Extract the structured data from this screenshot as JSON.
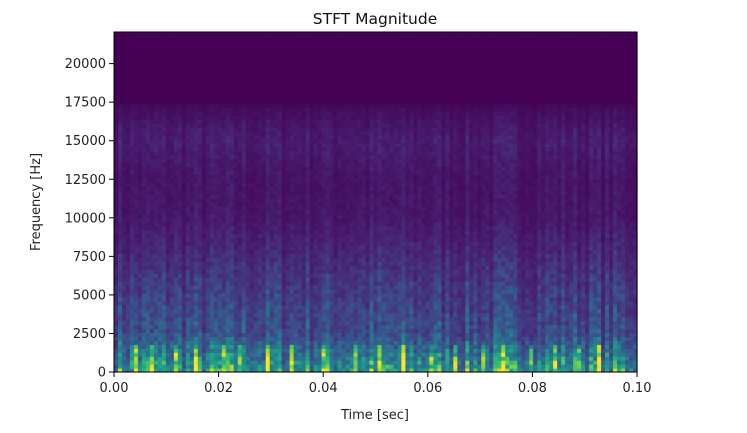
{
  "chart_data": {
    "type": "heatmap",
    "title": "STFT Magnitude",
    "xlabel": "Time [sec]",
    "ylabel": "Frequency [Hz]",
    "xlim": [
      0,
      0.1
    ],
    "ylim": [
      0,
      22050
    ],
    "xticks": [
      0.0,
      0.02,
      0.04,
      0.06,
      0.08,
      0.1
    ],
    "xtick_labels": [
      "0.00",
      "0.02",
      "0.04",
      "0.06",
      "0.08",
      "0.10"
    ],
    "yticks": [
      0,
      2500,
      5000,
      7500,
      10000,
      12500,
      15000,
      17500,
      20000
    ],
    "ytick_labels": [
      "0",
      "2500",
      "5000",
      "7500",
      "10000",
      "12500",
      "15000",
      "17500",
      "20000"
    ],
    "colormap": "viridis",
    "grid": false,
    "colors": {
      "low": "#440154",
      "mid": "#31688e",
      "high": "#b5de2b"
    },
    "magnitude_profile": {
      "frequency_hz": [
        0,
        1000,
        2500,
        5000,
        7500,
        10000,
        12500,
        15000,
        17000,
        17600,
        22050
      ],
      "relative_level": [
        0.62,
        0.44,
        0.26,
        0.2,
        0.13,
        0.07,
        0.06,
        0.09,
        0.04,
        0.0,
        0.0
      ]
    }
  }
}
